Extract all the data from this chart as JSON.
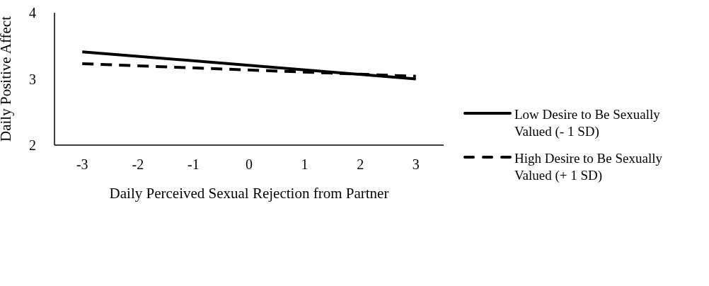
{
  "chart_data": {
    "type": "line",
    "xlabel": "Daily Perceived Sexual Rejection from Partner",
    "ylabel": "Daily Positive Affect",
    "x": [
      -3,
      3
    ],
    "xlim": [
      -3.5,
      3.5
    ],
    "xticks": [
      -3,
      -2,
      -1,
      0,
      1,
      2,
      3
    ],
    "ylim": [
      2,
      4
    ],
    "yticks": [
      2,
      3,
      4
    ],
    "grid": false,
    "legend": "right",
    "marker": "none",
    "series": [
      {
        "name": "Low Desire to Be Sexually Valued (- 1 SD)",
        "color": "#000000",
        "line_style": "solid",
        "values": [
          3.41,
          3.0
        ]
      },
      {
        "name": "High Desire to Be Sexually Valued (+ 1 SD)",
        "color": "#000000",
        "line_style": "dashed",
        "values": [
          3.23,
          3.04
        ]
      }
    ]
  }
}
